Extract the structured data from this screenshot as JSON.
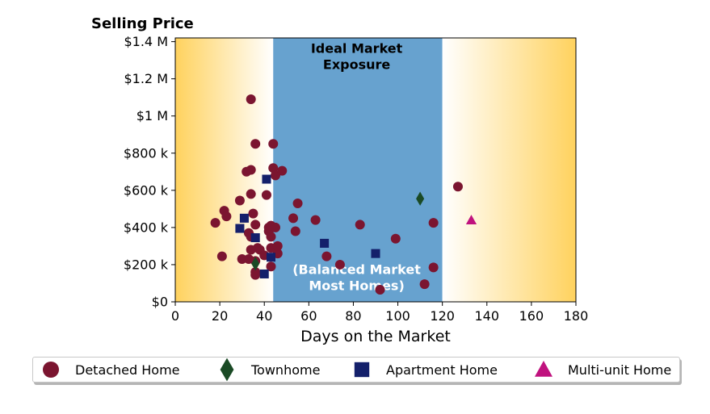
{
  "chart_data": {
    "type": "scatter",
    "title": "Selling Price",
    "xlabel": "Days on the Market",
    "ylabel": "",
    "xlim": [
      0,
      180
    ],
    "ylim": [
      0,
      1420000
    ],
    "xticks": [
      0,
      20,
      40,
      60,
      80,
      100,
      120,
      140,
      160,
      180
    ],
    "yticks": [
      {
        "value": 0,
        "label": "$0"
      },
      {
        "value": 200000,
        "label": "$200 k"
      },
      {
        "value": 400000,
        "label": "$400 k"
      },
      {
        "value": 600000,
        "label": "$600 k"
      },
      {
        "value": 800000,
        "label": "$800 k"
      },
      {
        "value": 1000000,
        "label": "$1 M"
      },
      {
        "value": 1200000,
        "label": "$1.2 M"
      },
      {
        "value": 1400000,
        "label": "$1.4 M"
      }
    ],
    "grid": false,
    "legend_position": "bottom",
    "regions": [
      {
        "from": 0,
        "to": 44,
        "fill": "gradient",
        "color": "#ffd25e"
      },
      {
        "from": 44,
        "to": 120,
        "fill": "solid",
        "color": "#67a2cf"
      },
      {
        "from": 120,
        "to": 180,
        "fill": "gradient",
        "color": "#ffd25e"
      }
    ],
    "annotations": [
      {
        "lines": [
          "Ideal Market",
          "Exposure"
        ],
        "x": 81.5,
        "y": 1340000,
        "color": "#000000"
      },
      {
        "lines": [
          "(Balanced Market",
          "Most Homes)"
        ],
        "x": 81.5,
        "y": 150000,
        "color": "#ffffff"
      }
    ],
    "series": [
      {
        "name": "Detached Home",
        "marker": "circle",
        "color": "#7b1530",
        "points": [
          [
            18,
            425000
          ],
          [
            21,
            245000
          ],
          [
            22,
            490000
          ],
          [
            23,
            460000
          ],
          [
            29,
            545000
          ],
          [
            30,
            230000
          ],
          [
            32,
            700000
          ],
          [
            33,
            230000
          ],
          [
            33,
            370000
          ],
          [
            34,
            710000
          ],
          [
            34,
            1090000
          ],
          [
            34,
            580000
          ],
          [
            34,
            350000
          ],
          [
            34,
            280000
          ],
          [
            35,
            475000
          ],
          [
            36,
            850000
          ],
          [
            36,
            415000
          ],
          [
            36,
            220000
          ],
          [
            36,
            160000
          ],
          [
            36,
            145000
          ],
          [
            37,
            290000
          ],
          [
            38,
            280000
          ],
          [
            40,
            250000
          ],
          [
            41,
            575000
          ],
          [
            42,
            400000
          ],
          [
            42,
            380000
          ],
          [
            43,
            410000
          ],
          [
            43,
            350000
          ],
          [
            43,
            290000
          ],
          [
            43,
            190000
          ],
          [
            44,
            850000
          ],
          [
            44,
            720000
          ],
          [
            45,
            680000
          ],
          [
            45,
            400000
          ],
          [
            46,
            260000
          ],
          [
            46,
            300000
          ],
          [
            48,
            705000
          ],
          [
            53,
            450000
          ],
          [
            54,
            380000
          ],
          [
            55,
            530000
          ],
          [
            63,
            440000
          ],
          [
            68,
            245000
          ],
          [
            74,
            200000
          ],
          [
            83,
            415000
          ],
          [
            92,
            65000
          ],
          [
            99,
            340000
          ],
          [
            112,
            95000
          ],
          [
            116,
            425000
          ],
          [
            116,
            185000
          ],
          [
            127,
            620000
          ]
        ]
      },
      {
        "name": "Townhome",
        "marker": "diamond",
        "color": "#1a4a25",
        "points": [
          [
            36,
            205000
          ],
          [
            110,
            555000
          ]
        ]
      },
      {
        "name": "Apartment Home",
        "marker": "square",
        "color": "#14206b",
        "points": [
          [
            29,
            395000
          ],
          [
            31,
            450000
          ],
          [
            36,
            345000
          ],
          [
            40,
            150000
          ],
          [
            41,
            660000
          ],
          [
            43,
            240000
          ],
          [
            67,
            315000
          ],
          [
            90,
            260000
          ]
        ]
      },
      {
        "name": "Multi-unit Home",
        "marker": "triangle",
        "color": "#c0127e",
        "points": [
          [
            133,
            440000
          ]
        ]
      }
    ]
  }
}
